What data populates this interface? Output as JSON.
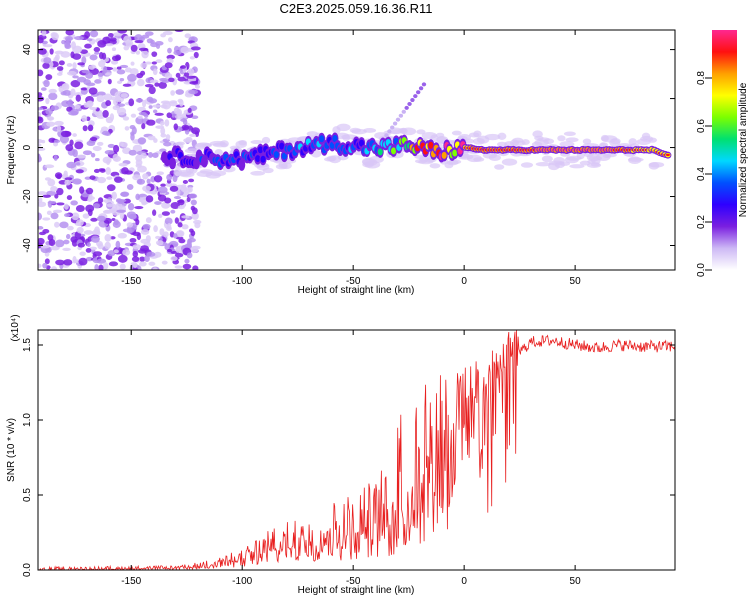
{
  "title": "C2E3.2025.059.16.36.R11",
  "chart_data": [
    {
      "type": "heatmap",
      "xlabel": "Height of straight line (km)",
      "ylabel": "Frequency (Hz)",
      "xlim": [
        -192,
        95
      ],
      "ylim": [
        -50,
        48
      ],
      "x_ticks": [
        -150,
        -100,
        -50,
        0,
        50
      ],
      "y_ticks": [
        -40,
        -20,
        0,
        20,
        40
      ],
      "grid": false,
      "colorbar": {
        "label": "Normalized spectral amplitude",
        "range": [
          0,
          1
        ],
        "ticks": [
          "0.0",
          "0.2",
          "0.4",
          "0.6",
          "0.8"
        ],
        "tick_values": [
          0,
          0.2,
          0.4,
          0.6,
          0.8
        ],
        "colors": [
          "#ffffff",
          "#cdb8f5",
          "#7a1fe0",
          "#2e00ff",
          "#0050ff",
          "#00d8ff",
          "#00e070",
          "#7cff00",
          "#ffff00",
          "#ffa000",
          "#ff1010",
          "#ff2890"
        ]
      },
      "signal_track": {
        "x": [
          -135,
          -120,
          -100,
          -80,
          -60,
          -45,
          -35,
          -25,
          -20,
          -12,
          0,
          10,
          30,
          60,
          85,
          90
        ],
        "y": [
          -4,
          -4,
          -5,
          -1,
          2,
          0,
          0,
          1,
          0,
          -2,
          0,
          -1,
          -1,
          -1,
          -1,
          -3
        ],
        "peak_amplitude": [
          0.25,
          0.3,
          0.3,
          0.35,
          0.4,
          0.4,
          0.45,
          0.6,
          0.8,
          0.85,
          0.9,
          0.95,
          0.95,
          1.0,
          0.85,
          0.9
        ]
      }
    },
    {
      "type": "line",
      "xlabel": "Height of straight line (km)",
      "ylabel": "SNR (10 * v/v)",
      "y_multiplier_label": "(x10⁴)",
      "xlim": [
        -192,
        95
      ],
      "ylim": [
        0,
        1.6
      ],
      "x_ticks": [
        -150,
        -100,
        -50,
        0,
        50
      ],
      "y_ticks": [
        "0.0",
        "0.5",
        "1.0",
        "1.5"
      ],
      "y_tick_values": [
        0,
        0.5,
        1.0,
        1.5
      ],
      "grid": false,
      "series": [
        {
          "color": "#e82020",
          "envelope": {
            "x": [
              -192,
              -130,
              -120,
              -110,
              -100,
              -90,
              -80,
              -70,
              -60,
              -50,
              -40,
              -35,
              -30,
              -25,
              -20,
              -15,
              -10,
              -5,
              0,
              5,
              10,
              20,
              25,
              30,
              40,
              50,
              60,
              70,
              80,
              95
            ],
            "mean": [
              0.0,
              0.01,
              0.02,
              0.04,
              0.06,
              0.1,
              0.14,
              0.16,
              0.2,
              0.22,
              0.25,
              0.28,
              0.3,
              0.42,
              0.55,
              0.68,
              0.78,
              0.85,
              0.95,
              1.08,
              1.2,
              1.35,
              1.45,
              1.52,
              1.53,
              1.5,
              1.48,
              1.5,
              1.49,
              1.49
            ],
            "max": [
              0.02,
              0.03,
              0.05,
              0.09,
              0.14,
              0.25,
              0.32,
              0.38,
              0.45,
              0.52,
              0.62,
              0.78,
              1.0,
              1.25,
              1.32,
              1.38,
              1.4,
              1.38,
              1.35,
              1.4,
              1.45,
              1.55,
              1.57,
              1.59,
              1.58,
              1.57,
              1.55,
              1.56,
              1.55,
              1.55
            ]
          }
        }
      ]
    }
  ]
}
